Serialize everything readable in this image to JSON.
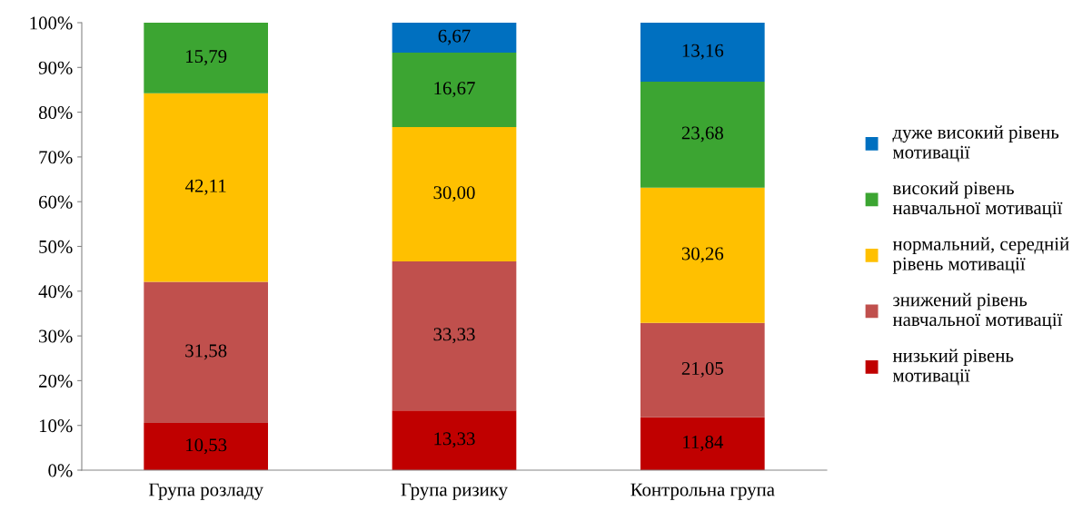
{
  "chart_data": {
    "type": "bar",
    "stacked": true,
    "categories": [
      "Група розладу",
      "Група ризику",
      "Контрольна група"
    ],
    "series": [
      {
        "name": "низький рівень мотивації",
        "color": "#c00000",
        "values": [
          10.53,
          13.33,
          11.84
        ],
        "value_labels": [
          "10,53",
          "13,33",
          "11,84"
        ]
      },
      {
        "name": "знижений рівень навчальної мотивації",
        "color": "#c0504d",
        "values": [
          31.58,
          33.33,
          21.05
        ],
        "value_labels": [
          "31,58",
          "33,33",
          "21,05"
        ]
      },
      {
        "name": "нормальний, середній рівень мотивації",
        "color": "#ffc000",
        "values": [
          42.11,
          30.0,
          30.26
        ],
        "value_labels": [
          "42,11",
          "30,00",
          "30,26"
        ]
      },
      {
        "name": "високий рівень навчальної мотивації",
        "color": "#3ca532",
        "values": [
          15.79,
          16.67,
          23.68
        ],
        "value_labels": [
          "15,79",
          "16,67",
          "23,68"
        ]
      },
      {
        "name": "дуже високий рівень мотивації",
        "color": "#0070c0",
        "values": [
          null,
          6.67,
          13.16
        ],
        "value_labels": [
          null,
          "6,67",
          "13,16"
        ]
      }
    ],
    "ylim": [
      0,
      100
    ],
    "yticks": [
      {
        "value": 0,
        "label": "0%"
      },
      {
        "value": 10,
        "label": "10%"
      },
      {
        "value": 20,
        "label": "20%"
      },
      {
        "value": 30,
        "label": "30%"
      },
      {
        "value": 40,
        "label": "40%"
      },
      {
        "value": 50,
        "label": "50%"
      },
      {
        "value": 60,
        "label": "60%"
      },
      {
        "value": 70,
        "label": "70%"
      },
      {
        "value": 80,
        "label": "80%"
      },
      {
        "value": 90,
        "label": "90%"
      },
      {
        "value": 100,
        "label": "100%"
      }
    ],
    "grid": false,
    "legend": "right"
  }
}
